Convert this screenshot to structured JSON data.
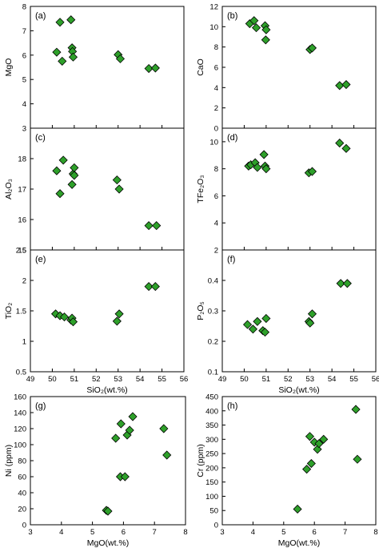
{
  "chart_data": [
    {
      "type": "scatter",
      "panel_label": "(a)",
      "ylabel": "MgO",
      "xlabel": "",
      "xlim": [
        49,
        56
      ],
      "ylim": [
        3,
        8
      ],
      "xticks": [],
      "yticks": [
        3,
        4,
        5,
        6,
        7,
        8
      ],
      "points": [
        [
          50.2,
          6.12
        ],
        [
          50.35,
          7.35
        ],
        [
          50.45,
          5.75
        ],
        [
          50.85,
          7.45
        ],
        [
          50.9,
          6.3
        ],
        [
          50.92,
          6.15
        ],
        [
          50.95,
          5.92
        ],
        [
          53.0,
          6.02
        ],
        [
          53.1,
          5.85
        ],
        [
          54.4,
          5.45
        ],
        [
          54.7,
          5.47
        ]
      ]
    },
    {
      "type": "scatter",
      "panel_label": "(b)",
      "ylabel": "CaO",
      "xlabel": "",
      "xlim": [
        49,
        56
      ],
      "ylim": [
        0,
        12
      ],
      "xticks": [],
      "yticks": [
        0,
        2,
        4,
        6,
        8,
        10,
        12
      ],
      "points": [
        [
          50.25,
          10.3
        ],
        [
          50.45,
          10.6
        ],
        [
          50.55,
          9.9
        ],
        [
          50.95,
          10.1
        ],
        [
          51.0,
          9.7
        ],
        [
          50.98,
          8.7
        ],
        [
          53.0,
          7.75
        ],
        [
          53.1,
          7.9
        ],
        [
          54.35,
          4.2
        ],
        [
          54.65,
          4.3
        ]
      ]
    },
    {
      "type": "scatter",
      "panel_label": "(c)",
      "ylabel": "Al₂O₃",
      "xlabel": "",
      "xlim": [
        49,
        56
      ],
      "ylim": [
        15,
        19
      ],
      "xticks": [],
      "yticks": [
        15,
        16,
        17,
        18
      ],
      "points": [
        [
          50.2,
          17.6
        ],
        [
          50.35,
          16.85
        ],
        [
          50.5,
          17.95
        ],
        [
          50.9,
          17.15
        ],
        [
          50.95,
          17.5
        ],
        [
          51.0,
          17.45
        ],
        [
          51.0,
          17.7
        ],
        [
          52.95,
          17.3
        ],
        [
          53.05,
          17.0
        ],
        [
          54.4,
          15.8
        ],
        [
          54.75,
          15.8
        ]
      ]
    },
    {
      "type": "scatter",
      "panel_label": "(d)",
      "ylabel": "TFe₂O₃",
      "xlabel": "",
      "xlim": [
        49,
        56
      ],
      "ylim": [
        2,
        11
      ],
      "xticks": [],
      "yticks": [
        2,
        4,
        6,
        8,
        10
      ],
      "points": [
        [
          50.2,
          8.2
        ],
        [
          50.3,
          8.3
        ],
        [
          50.5,
          8.45
        ],
        [
          50.6,
          8.1
        ],
        [
          50.9,
          9.05
        ],
        [
          50.95,
          8.2
        ],
        [
          51.0,
          8.0
        ],
        [
          52.95,
          7.7
        ],
        [
          53.1,
          7.8
        ],
        [
          54.35,
          9.9
        ],
        [
          54.65,
          9.5
        ]
      ]
    },
    {
      "type": "scatter",
      "panel_label": "(e)",
      "ylabel": "TiO₂",
      "xlabel": "SiO₂(wt.%)",
      "xlim": [
        49,
        56
      ],
      "ylim": [
        0.5,
        2.5
      ],
      "xticks": [
        49,
        50,
        51,
        52,
        53,
        54,
        55,
        56
      ],
      "yticks": [
        0.5,
        1,
        1.5,
        2,
        2.5
      ],
      "points": [
        [
          50.15,
          1.45
        ],
        [
          50.35,
          1.42
        ],
        [
          50.55,
          1.4
        ],
        [
          50.85,
          1.35
        ],
        [
          50.9,
          1.38
        ],
        [
          50.95,
          1.32
        ],
        [
          52.95,
          1.33
        ],
        [
          53.05,
          1.45
        ],
        [
          54.4,
          1.9
        ],
        [
          54.7,
          1.9
        ]
      ]
    },
    {
      "type": "scatter",
      "panel_label": "(f)",
      "ylabel": "P₂O₅",
      "xlabel": "SiO₂(wt.%)",
      "xlim": [
        49,
        56
      ],
      "ylim": [
        0.1,
        0.5
      ],
      "xticks": [
        49,
        50,
        51,
        52,
        53,
        54,
        55,
        56
      ],
      "yticks": [
        0.1,
        0.2,
        0.3,
        0.4
      ],
      "points": [
        [
          50.15,
          0.255
        ],
        [
          50.4,
          0.24
        ],
        [
          50.6,
          0.265
        ],
        [
          50.85,
          0.235
        ],
        [
          50.95,
          0.23
        ],
        [
          51.0,
          0.275
        ],
        [
          52.95,
          0.265
        ],
        [
          53.0,
          0.26
        ],
        [
          53.1,
          0.29
        ],
        [
          54.4,
          0.39
        ],
        [
          54.7,
          0.39
        ]
      ]
    },
    {
      "type": "scatter",
      "panel_label": "(g)",
      "ylabel": "Ni (ppm)",
      "xlabel": "MgO(wt.%)",
      "xlim": [
        3,
        8
      ],
      "ylim": [
        0,
        160
      ],
      "xticks": [
        3,
        4,
        5,
        6,
        7,
        8
      ],
      "yticks": [
        0,
        20,
        40,
        60,
        80,
        100,
        120,
        140,
        160
      ],
      "points": [
        [
          5.45,
          18
        ],
        [
          5.5,
          17
        ],
        [
          5.75,
          108
        ],
        [
          5.9,
          60
        ],
        [
          5.92,
          126
        ],
        [
          6.05,
          60
        ],
        [
          6.12,
          112
        ],
        [
          6.2,
          118
        ],
        [
          6.3,
          135
        ],
        [
          7.3,
          120
        ],
        [
          7.4,
          87
        ]
      ]
    },
    {
      "type": "scatter",
      "panel_label": "(h)",
      "ylabel": "Cr (ppm)",
      "xlabel": "MgO(wt.%)",
      "xlim": [
        3,
        8
      ],
      "ylim": [
        0,
        450
      ],
      "xticks": [
        3,
        4,
        5,
        6,
        7,
        8
      ],
      "yticks": [
        0,
        50,
        100,
        150,
        200,
        250,
        300,
        350,
        400,
        450
      ],
      "points": [
        [
          5.45,
          55
        ],
        [
          5.75,
          195
        ],
        [
          5.85,
          310
        ],
        [
          5.9,
          215
        ],
        [
          6.0,
          290
        ],
        [
          6.1,
          265
        ],
        [
          6.15,
          285
        ],
        [
          6.3,
          300
        ],
        [
          7.35,
          405
        ],
        [
          7.4,
          230
        ]
      ]
    }
  ]
}
